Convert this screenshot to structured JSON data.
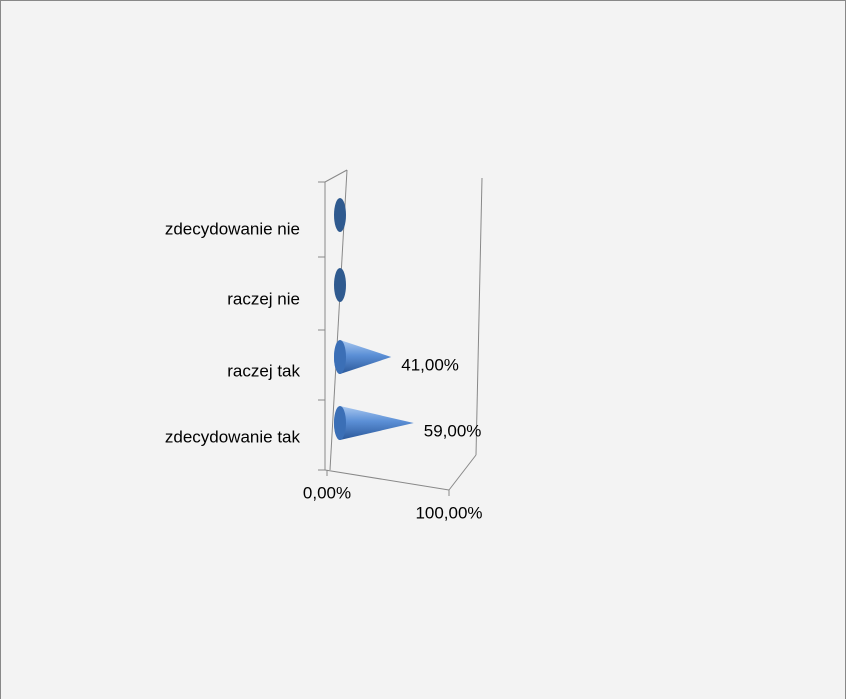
{
  "chart_data": {
    "type": "cone",
    "categories": [
      "zdecydowanie tak",
      "raczej tak",
      "raczej nie",
      "zdecydowanie nie"
    ],
    "values": [
      59,
      41,
      0,
      0
    ],
    "value_labels": [
      "59,00%",
      "41,00%",
      null,
      null
    ],
    "color": "#4f81bd",
    "xlim": [
      0,
      100
    ],
    "xticks": [
      {
        "value": 0,
        "label": "0,00%"
      },
      {
        "value": 100,
        "label": "100,00%"
      }
    ]
  }
}
